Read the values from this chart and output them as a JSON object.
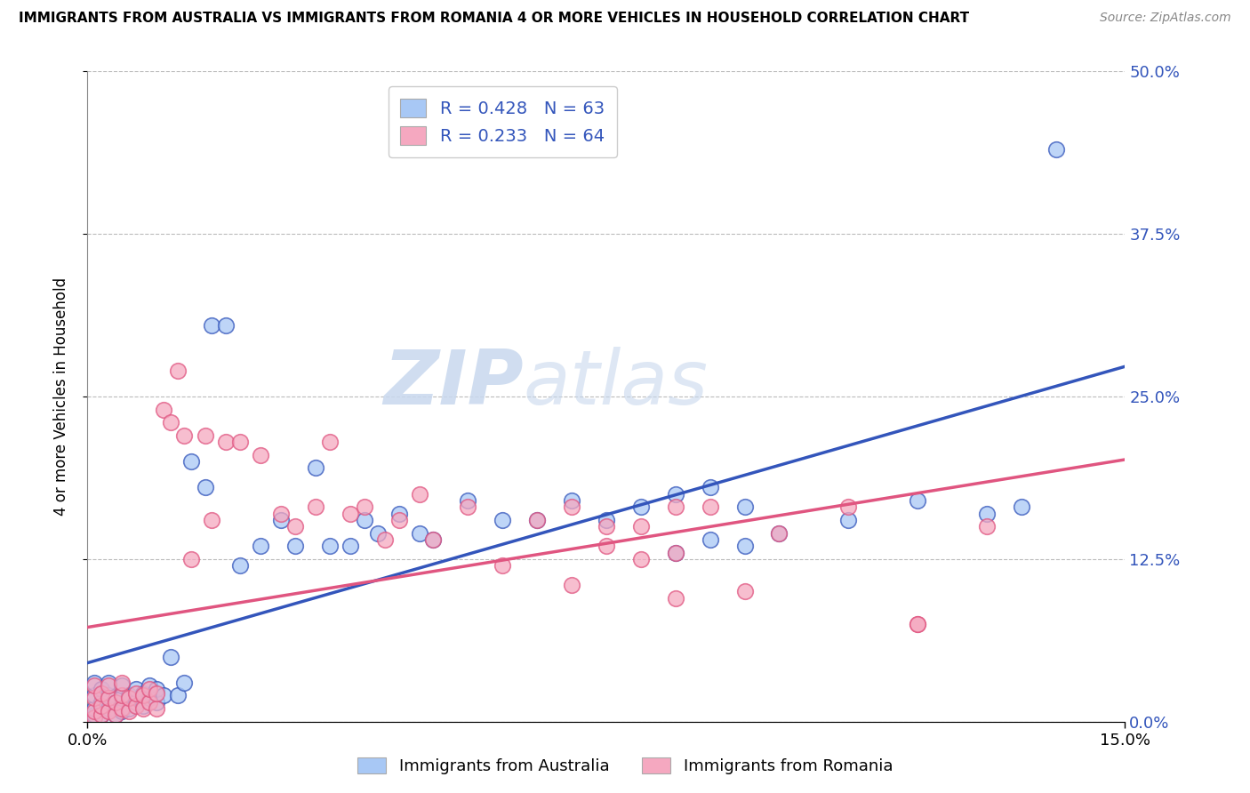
{
  "title": "IMMIGRANTS FROM AUSTRALIA VS IMMIGRANTS FROM ROMANIA 4 OR MORE VEHICLES IN HOUSEHOLD CORRELATION CHART",
  "source": "Source: ZipAtlas.com",
  "ylabel_label": "4 or more Vehicles in Household",
  "legend_label1": "Immigrants from Australia",
  "legend_label2": "Immigrants from Romania",
  "R1": 0.428,
  "N1": 63,
  "R2": 0.233,
  "N2": 64,
  "color_australia": "#a8c8f5",
  "color_romania": "#f5a8c0",
  "line_color_australia": "#3355bb",
  "line_color_romania": "#e05580",
  "watermark_zip": "ZIP",
  "watermark_atlas": "atlas",
  "xlim": [
    0.0,
    0.15
  ],
  "ylim": [
    0.0,
    0.5
  ],
  "aus_x": [
    0.001,
    0.001,
    0.001,
    0.001,
    0.002,
    0.002,
    0.002,
    0.003,
    0.003,
    0.003,
    0.004,
    0.004,
    0.005,
    0.005,
    0.005,
    0.006,
    0.006,
    0.007,
    0.007,
    0.008,
    0.008,
    0.009,
    0.009,
    0.01,
    0.01,
    0.011,
    0.012,
    0.013,
    0.014,
    0.015,
    0.017,
    0.018,
    0.02,
    0.022,
    0.025,
    0.028,
    0.03,
    0.033,
    0.035,
    0.038,
    0.04,
    0.042,
    0.045,
    0.048,
    0.05,
    0.055,
    0.06,
    0.065,
    0.07,
    0.075,
    0.08,
    0.085,
    0.09,
    0.095,
    0.1,
    0.11,
    0.12,
    0.13,
    0.135,
    0.14,
    0.085,
    0.09,
    0.095
  ],
  "aus_y": [
    0.005,
    0.01,
    0.02,
    0.03,
    0.005,
    0.015,
    0.025,
    0.01,
    0.02,
    0.03,
    0.005,
    0.015,
    0.008,
    0.018,
    0.028,
    0.01,
    0.02,
    0.015,
    0.025,
    0.012,
    0.022,
    0.018,
    0.028,
    0.015,
    0.025,
    0.02,
    0.05,
    0.02,
    0.03,
    0.2,
    0.18,
    0.305,
    0.305,
    0.12,
    0.135,
    0.155,
    0.135,
    0.195,
    0.135,
    0.135,
    0.155,
    0.145,
    0.16,
    0.145,
    0.14,
    0.17,
    0.155,
    0.155,
    0.17,
    0.155,
    0.165,
    0.175,
    0.18,
    0.165,
    0.145,
    0.155,
    0.17,
    0.16,
    0.165,
    0.44,
    0.13,
    0.14,
    0.135
  ],
  "rom_x": [
    0.001,
    0.001,
    0.001,
    0.001,
    0.002,
    0.002,
    0.002,
    0.003,
    0.003,
    0.003,
    0.004,
    0.004,
    0.005,
    0.005,
    0.005,
    0.006,
    0.006,
    0.007,
    0.007,
    0.008,
    0.008,
    0.009,
    0.009,
    0.01,
    0.01,
    0.011,
    0.012,
    0.013,
    0.014,
    0.015,
    0.017,
    0.018,
    0.02,
    0.022,
    0.025,
    0.028,
    0.03,
    0.033,
    0.035,
    0.038,
    0.04,
    0.043,
    0.045,
    0.048,
    0.05,
    0.055,
    0.06,
    0.065,
    0.07,
    0.075,
    0.08,
    0.085,
    0.09,
    0.095,
    0.1,
    0.11,
    0.12,
    0.13,
    0.085,
    0.12,
    0.07,
    0.075,
    0.08,
    0.085
  ],
  "rom_y": [
    0.003,
    0.008,
    0.018,
    0.028,
    0.005,
    0.012,
    0.022,
    0.008,
    0.018,
    0.028,
    0.005,
    0.015,
    0.01,
    0.02,
    0.03,
    0.008,
    0.018,
    0.012,
    0.022,
    0.01,
    0.02,
    0.015,
    0.025,
    0.01,
    0.022,
    0.24,
    0.23,
    0.27,
    0.22,
    0.125,
    0.22,
    0.155,
    0.215,
    0.215,
    0.205,
    0.16,
    0.15,
    0.165,
    0.215,
    0.16,
    0.165,
    0.14,
    0.155,
    0.175,
    0.14,
    0.165,
    0.12,
    0.155,
    0.165,
    0.15,
    0.125,
    0.095,
    0.165,
    0.1,
    0.145,
    0.165,
    0.075,
    0.15,
    0.13,
    0.075,
    0.105,
    0.135,
    0.15,
    0.165
  ]
}
